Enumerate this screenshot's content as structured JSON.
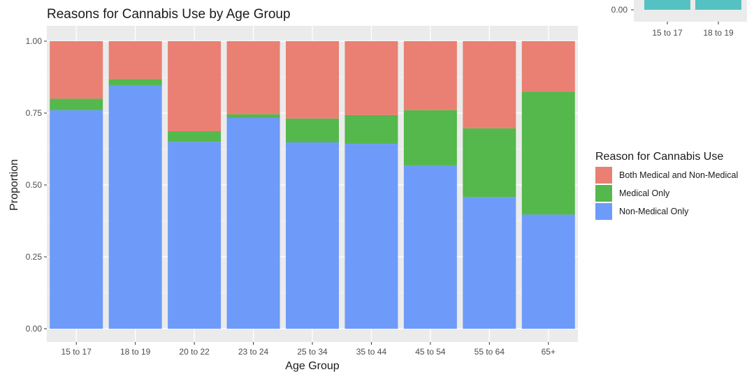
{
  "chart_data": [
    {
      "type": "bar",
      "stacked": true,
      "title": "Reasons for Cannabis Use by Age Group",
      "xlabel": "Age Group",
      "ylabel": "Proportion",
      "ylim": [
        0,
        1
      ],
      "yticks": [
        "0.00",
        "0.25",
        "0.50",
        "0.75",
        "1.00"
      ],
      "categories": [
        "15 to 17",
        "18 to 19",
        "20 to 22",
        "23 to 24",
        "25 to 34",
        "35 to 44",
        "45 to 54",
        "55 to 64",
        "65+"
      ],
      "series": [
        {
          "name": "Non-Medical Only",
          "color": "#6e9bf9",
          "values": [
            0.76,
            0.845,
            0.65,
            0.733,
            0.648,
            0.643,
            0.567,
            0.458,
            0.397
          ]
        },
        {
          "name": "Medical Only",
          "color": "#54b84c",
          "values": [
            0.04,
            0.023,
            0.037,
            0.013,
            0.083,
            0.1,
            0.193,
            0.239,
            0.427
          ]
        },
        {
          "name": "Both Medical and Non-Medical",
          "color": "#e98073",
          "values": [
            0.2,
            0.132,
            0.313,
            0.254,
            0.269,
            0.257,
            0.24,
            0.303,
            0.176
          ]
        }
      ],
      "legend": {
        "title": "Reason for Cannabis Use",
        "position": "right",
        "entries": [
          "Both Medical and Non-Medical",
          "Medical Only",
          "Non-Medical Only"
        ]
      },
      "grid": true
    },
    {
      "type": "bar",
      "partial": true,
      "categories": [
        "15 to 17",
        "18 to 19"
      ],
      "visible_ytick": "0.00",
      "color": "#56c1c2"
    }
  ]
}
